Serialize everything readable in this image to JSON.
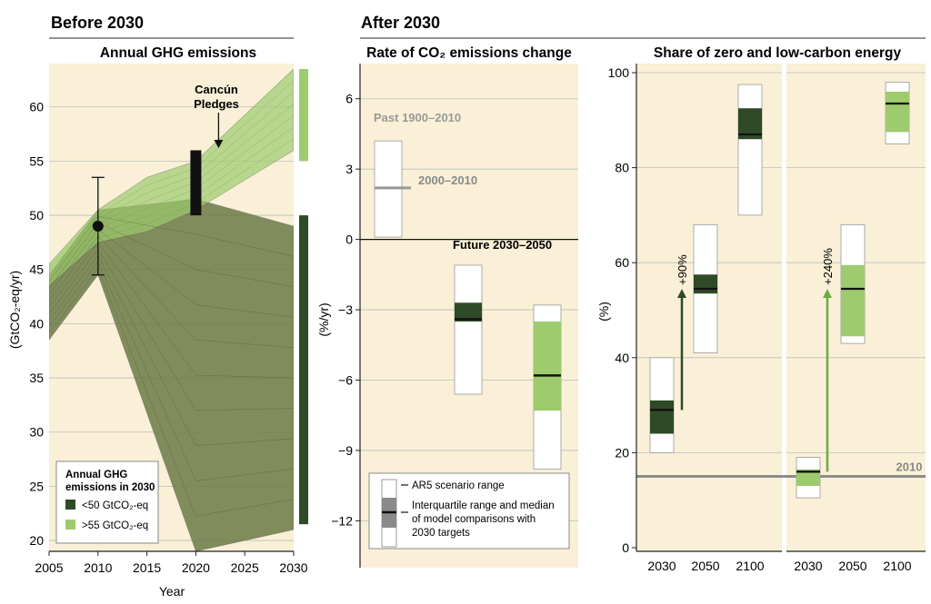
{
  "headers": {
    "before": "Before 2030",
    "after": "After 2030"
  },
  "colors": {
    "panel_bg": "#f9f0d7",
    "dark_green": "#2e4a26",
    "light_green": "#9dcb6e",
    "olive": "#6b7a45",
    "grey": "#999999",
    "grid": "#bdbdbd"
  },
  "chart_data": [
    {
      "type": "area",
      "title": "Annual GHG emissions",
      "xlabel": "Year",
      "ylabel": "(GtCO₂-eq/yr)",
      "xlim": [
        2005,
        2030
      ],
      "ylim": [
        19,
        64
      ],
      "x_ticks": [
        "2005",
        "2010",
        "2015",
        "2020",
        "2025",
        "2030"
      ],
      "y_ticks": [
        "20",
        "25",
        "30",
        "35",
        "40",
        "45",
        "50",
        "55",
        "60"
      ],
      "grid": "horizontal",
      "legend": {
        "title_line1": "Annual GHG",
        "title_line2": "emissions in 2030",
        "placement": "bottom-left",
        "items": [
          {
            "label": "<50 GtCO₂-eq",
            "color": "#2e4a26"
          },
          {
            "label": ">55 GtCO₂-eq",
            "color": "#9dcb6e"
          }
        ]
      },
      "series": [
        {
          "name": "<50 GtCO₂-eq",
          "band_x": [
            2005,
            2010,
            2020,
            2030
          ],
          "upper": [
            44.5,
            50.5,
            51.5,
            49
          ],
          "lower": [
            38.5,
            44.5,
            19,
            21
          ]
        },
        {
          "name": ">55 GtCO₂-eq",
          "band_x": [
            2005,
            2010,
            2015,
            2020,
            2030
          ],
          "upper": [
            45.5,
            50.5,
            53.5,
            55,
            63.5
          ],
          "lower": [
            43.5,
            47.5,
            48.5,
            50.5,
            56
          ]
        }
      ],
      "historical": {
        "x": 2010,
        "y": 49,
        "err_low": 44.5,
        "err_high": 53.5
      },
      "cancun_pledges": {
        "x": 2020,
        "low": 50,
        "high": 56,
        "label_line1": "Cancún",
        "label_line2": "Pledges"
      },
      "side_bars": [
        {
          "low": 55,
          "high": 63.5,
          "color": "#9dcb6e"
        },
        {
          "low": 21.5,
          "high": 50,
          "color": "#2e4a26"
        }
      ]
    },
    {
      "type": "box",
      "title": "Rate of CO₂ emissions change",
      "ylabel": "(%/yr)",
      "ylim": [
        -14,
        7.5
      ],
      "y_ticks": [
        "6",
        "3",
        "0",
        "−3",
        "−6",
        "−9",
        "−12"
      ],
      "annotations": {
        "past": "Past 1900–2010",
        "recent": "2000–2010",
        "future": "Future 2030–2050"
      },
      "boxes": [
        {
          "name": "Past 1900–2010",
          "range": [
            0.1,
            4.2
          ],
          "median": 2.2,
          "iqr": null,
          "color": "#999999"
        },
        {
          "name": "<50 GtCO₂-eq",
          "range": [
            -6.6,
            -1.1
          ],
          "iqr": [
            -3.5,
            -2.7
          ],
          "median": -3.4,
          "color": "#2e4a26"
        },
        {
          "name": ">55 GtCO₂-eq",
          "range": [
            -9.8,
            -2.8
          ],
          "iqr": [
            -7.3,
            -3.5
          ],
          "median": -5.8,
          "color": "#9dcb6e"
        }
      ],
      "legend": {
        "placement": "bottom",
        "item1": "AR5 scenario range",
        "item2_line1": "Interquartile range and median",
        "item2_line2": "of model comparisons with",
        "item2_line3": "2030 targets"
      }
    },
    {
      "type": "box",
      "title": "Share of zero and low-carbon energy",
      "ylabel": "(%)",
      "ylim": [
        0,
        100
      ],
      "y_ticks": [
        "0",
        "20",
        "40",
        "60",
        "80",
        "100"
      ],
      "categories": [
        "2030",
        "2050",
        "2100"
      ],
      "reference": {
        "label": "2010",
        "value": 15
      },
      "groups": [
        {
          "name": "<50 GtCO₂-eq",
          "color": "#2e4a26",
          "arrow_label": "+90%",
          "boxes": [
            {
              "range": [
                20,
                40
              ],
              "iqr": [
                24,
                31
              ],
              "median": 29
            },
            {
              "range": [
                41,
                68
              ],
              "iqr": [
                53.5,
                57.5
              ],
              "median": 54.5
            },
            {
              "range": [
                70,
                97.5
              ],
              "iqr": [
                86,
                92.5
              ],
              "median": 87
            }
          ]
        },
        {
          "name": ">55 GtCO₂-eq",
          "color": "#9dcb6e",
          "arrow_label": "+240%",
          "boxes": [
            {
              "range": [
                10.5,
                19
              ],
              "iqr": [
                13,
                16.5
              ],
              "median": 16
            },
            {
              "range": [
                43,
                68
              ],
              "iqr": [
                44.5,
                59.5
              ],
              "median": 54.5
            },
            {
              "range": [
                85,
                98
              ],
              "iqr": [
                87.5,
                96
              ],
              "median": 93.5
            }
          ]
        }
      ]
    }
  ]
}
